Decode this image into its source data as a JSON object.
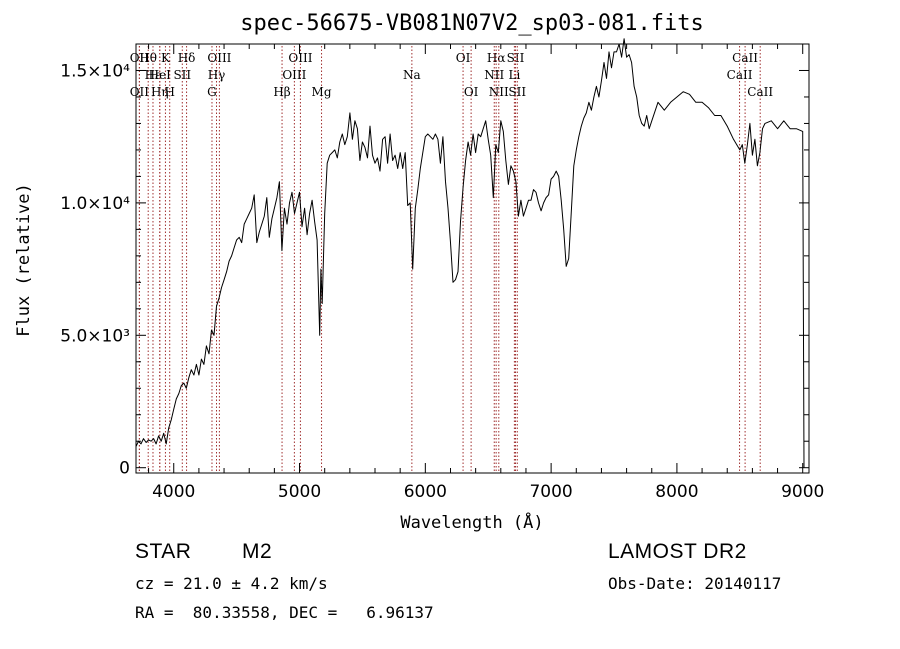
{
  "chart_data": {
    "type": "line",
    "title": "spec-56675-VB081N07V2_sp03-081.fits",
    "xlabel": "Wavelength (Å)",
    "ylabel": "Flux (relative)",
    "xlim": [
      3700,
      9050
    ],
    "ylim": [
      -200,
      16000
    ],
    "x_ticks": [
      {
        "value": 4000,
        "label": "4000"
      },
      {
        "value": 5000,
        "label": "5000"
      },
      {
        "value": 6000,
        "label": "6000"
      },
      {
        "value": 7000,
        "label": "7000"
      },
      {
        "value": 8000,
        "label": "8000"
      },
      {
        "value": 9000,
        "label": "9000"
      }
    ],
    "y_ticks": [
      {
        "value": 0,
        "label": "0"
      },
      {
        "value": 5000,
        "label": "5.0×10³"
      },
      {
        "value": 10000,
        "label": "1.0×10⁴"
      },
      {
        "value": 15000,
        "label": "1.5×10⁴"
      }
    ],
    "series": [
      {
        "color": "#000000",
        "x": [
          3700,
          3720,
          3740,
          3760,
          3780,
          3800,
          3820,
          3840,
          3860,
          3880,
          3900,
          3920,
          3940,
          3960,
          3980,
          4000,
          4020,
          4040,
          4060,
          4080,
          4100,
          4120,
          4140,
          4160,
          4180,
          4200,
          4220,
          4240,
          4260,
          4280,
          4300,
          4320,
          4340,
          4360,
          4380,
          4400,
          4420,
          4440,
          4460,
          4480,
          4500,
          4520,
          4540,
          4560,
          4580,
          4600,
          4620,
          4640,
          4660,
          4680,
          4700,
          4720,
          4740,
          4760,
          4780,
          4800,
          4820,
          4840,
          4860,
          4880,
          4900,
          4920,
          4940,
          4960,
          4980,
          5000,
          5020,
          5040,
          5060,
          5080,
          5100,
          5120,
          5140,
          5160,
          5170,
          5180,
          5200,
          5220,
          5240,
          5260,
          5280,
          5300,
          5320,
          5340,
          5360,
          5380,
          5400,
          5420,
          5440,
          5460,
          5480,
          5500,
          5520,
          5540,
          5560,
          5580,
          5600,
          5620,
          5640,
          5660,
          5680,
          5700,
          5720,
          5740,
          5760,
          5780,
          5800,
          5820,
          5840,
          5860,
          5880,
          5900,
          5920,
          5940,
          5960,
          5980,
          6000,
          6020,
          6040,
          6060,
          6080,
          6100,
          6120,
          6140,
          6160,
          6180,
          6200,
          6220,
          6240,
          6260,
          6280,
          6300,
          6320,
          6340,
          6360,
          6380,
          6400,
          6420,
          6440,
          6460,
          6480,
          6500,
          6520,
          6540,
          6560,
          6580,
          6600,
          6620,
          6640,
          6660,
          6680,
          6700,
          6720,
          6740,
          6760,
          6780,
          6800,
          6820,
          6840,
          6860,
          6880,
          6900,
          6920,
          6940,
          6960,
          6980,
          7000,
          7020,
          7040,
          7060,
          7080,
          7100,
          7120,
          7140,
          7160,
          7180,
          7200,
          7220,
          7240,
          7260,
          7280,
          7300,
          7320,
          7340,
          7360,
          7380,
          7400,
          7420,
          7440,
          7460,
          7480,
          7500,
          7520,
          7540,
          7560,
          7580,
          7600,
          7620,
          7640,
          7660,
          7680,
          7700,
          7720,
          7740,
          7760,
          7780,
          7800,
          7850,
          7900,
          7950,
          8000,
          8050,
          8100,
          8150,
          8200,
          8250,
          8300,
          8350,
          8400,
          8450,
          8500,
          8520,
          8540,
          8560,
          8580,
          8600,
          8620,
          8640,
          8660,
          8680,
          8700,
          8750,
          8800,
          8850,
          8900,
          8950,
          9000,
          9010
        ],
        "y": [
          800,
          1000,
          900,
          1100,
          950,
          1050,
          1000,
          1100,
          900,
          1200,
          1000,
          1300,
          900,
          1500,
          1800,
          2200,
          2600,
          2800,
          3100,
          3200,
          3000,
          3400,
          3700,
          3500,
          3900,
          3500,
          4100,
          3900,
          4600,
          4300,
          5200,
          5000,
          6100,
          6400,
          6800,
          7100,
          7400,
          7800,
          8000,
          8300,
          8600,
          8700,
          8500,
          9200,
          9400,
          9600,
          9800,
          10300,
          8500,
          8900,
          9200,
          9500,
          10200,
          8700,
          9400,
          9800,
          10200,
          10800,
          8200,
          9800,
          9200,
          10000,
          10400,
          9600,
          10000,
          10400,
          9100,
          9800,
          8800,
          9600,
          10100,
          9300,
          8600,
          5000,
          7500,
          6200,
          9600,
          11500,
          11800,
          11900,
          12000,
          11700,
          12300,
          12600,
          12200,
          12500,
          13400,
          12400,
          13100,
          12800,
          11600,
          12300,
          12100,
          11700,
          12900,
          11800,
          11500,
          11700,
          11200,
          12400,
          12500,
          11500,
          12600,
          11600,
          11800,
          11300,
          11900,
          11300,
          11900,
          9900,
          10000,
          7500,
          9800,
          10500,
          11300,
          11900,
          12500,
          12600,
          12500,
          12400,
          12600,
          12400,
          11500,
          12500,
          10800,
          9800,
          8500,
          7000,
          7100,
          7400,
          9300,
          10600,
          11600,
          12300,
          11800,
          12600,
          11900,
          12600,
          12500,
          12800,
          13100,
          12400,
          11800,
          10200,
          12200,
          11900,
          13100,
          12700,
          11600,
          10700,
          11400,
          11200,
          10800,
          9500,
          10100,
          9500,
          9800,
          10100,
          10100,
          10500,
          10400,
          10000,
          9700,
          10000,
          10200,
          10300,
          10900,
          11000,
          11200,
          11000,
          10100,
          9000,
          7600,
          7900,
          9600,
          11400,
          12000,
          12500,
          12900,
          13200,
          13400,
          13800,
          13500,
          14000,
          14400,
          14000,
          14600,
          15300,
          14700,
          15700,
          15100,
          15700,
          15700,
          16000,
          15500,
          16200,
          15500,
          15600,
          15300,
          14400,
          14000,
          13300,
          13000,
          12900,
          13300,
          12800,
          13100,
          13800,
          13500,
          13800,
          14000,
          14200,
          14100,
          13800,
          13800,
          13600,
          13300,
          13300,
          12900,
          12400,
          12000,
          12200,
          11500,
          12200,
          13000,
          11800,
          12400,
          11400,
          11900,
          12800,
          13000,
          13100,
          12800,
          13100,
          12800,
          12800,
          12700,
          0
        ]
      }
    ],
    "line_markers": [
      {
        "label": "Hθ",
        "x": 3797,
        "row": 0
      },
      {
        "label": "OII",
        "x": 3727,
        "row": 0
      },
      {
        "label": "OII",
        "x": 3727,
        "row": 2
      },
      {
        "label": "Hε",
        "x": 3835,
        "row": 1
      },
      {
        "label": "Hη",
        "x": 3889,
        "row": 2
      },
      {
        "label": "K",
        "x": 3934,
        "row": 0
      },
      {
        "label": "HeI",
        "x": 3889,
        "row": 1
      },
      {
        "label": "H",
        "x": 3968,
        "row": 2
      },
      {
        "label": "SII",
        "x": 4068,
        "row": 1
      },
      {
        "label": "Hδ",
        "x": 4102,
        "row": 0
      },
      {
        "label": "OIII",
        "x": 4363,
        "row": 0
      },
      {
        "label": "Hγ",
        "x": 4340,
        "row": 1
      },
      {
        "label": "G",
        "x": 4304,
        "row": 2
      },
      {
        "label": "Hβ",
        "x": 4861,
        "row": 2
      },
      {
        "label": "OIII",
        "x": 5007,
        "row": 0
      },
      {
        "label": "OIII",
        "x": 4959,
        "row": 1
      },
      {
        "label": "Mg",
        "x": 5175,
        "row": 2
      },
      {
        "label": "Na",
        "x": 5893,
        "row": 1
      },
      {
        "label": "OI",
        "x": 6300,
        "row": 0
      },
      {
        "label": "OI",
        "x": 6364,
        "row": 2
      },
      {
        "label": "Hα",
        "x": 6563,
        "row": 0
      },
      {
        "label": "NII",
        "x": 6548,
        "row": 1
      },
      {
        "label": "NII",
        "x": 6584,
        "row": 2
      },
      {
        "label": "SII",
        "x": 6717,
        "row": 0
      },
      {
        "label": "Li",
        "x": 6708,
        "row": 1
      },
      {
        "label": "SII",
        "x": 6731,
        "row": 2
      },
      {
        "label": "CaII",
        "x": 8542,
        "row": 0
      },
      {
        "label": "CaII",
        "x": 8498,
        "row": 1
      },
      {
        "label": "CaII",
        "x": 8662,
        "row": 2
      }
    ],
    "grid": false,
    "legend": "none"
  },
  "info": {
    "object_class": "STAR",
    "subclass": "M2",
    "survey": "LAMOST DR2",
    "redshift": "cz = 21.0 ± 4.2 km/s",
    "obs_date": "Obs-Date: 20140117",
    "coords": "RA =  80.33558, DEC =   6.96137"
  },
  "colors": {
    "line_marker": "#a03030",
    "spectrum": "#000000"
  }
}
